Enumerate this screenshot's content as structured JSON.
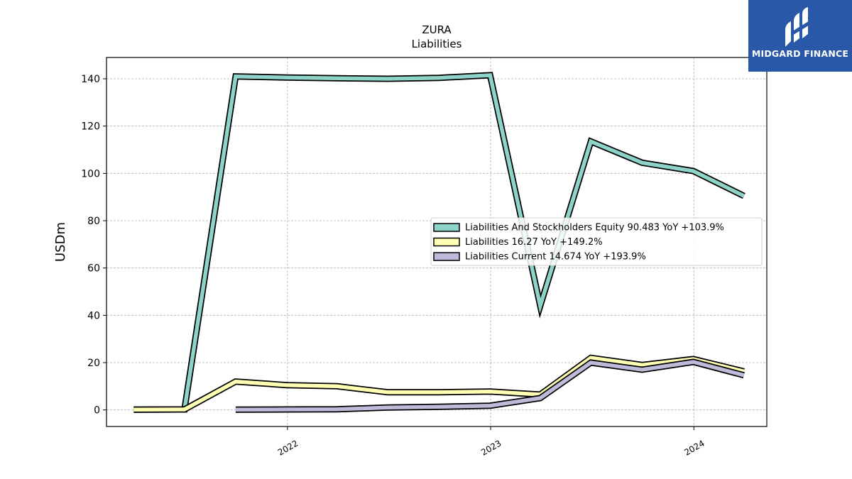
{
  "chart_data": {
    "type": "line",
    "title": "ZURA",
    "subtitle": "Liabilities",
    "xlabel": "",
    "ylabel": "USDm",
    "xlim": [
      "2021-02-10",
      "2024-05-11"
    ],
    "ylim": [
      -7,
      149
    ],
    "x_ticks": [
      "2022",
      "2023",
      "2024"
    ],
    "y_ticks": [
      0,
      20,
      40,
      60,
      80,
      100,
      120,
      140
    ],
    "grid": true,
    "legend_position": "center-right",
    "series": [
      {
        "name": "Liabilities And Stockholders Equity  90.483 YoY +103.9%",
        "color": "#8dd3c7",
        "points": [
          [
            "2021-03-31",
            0.1
          ],
          [
            "2021-06-30",
            0.2
          ],
          [
            "2021-09-30",
            141.0
          ],
          [
            "2021-12-31",
            140.5
          ],
          [
            "2022-03-31",
            140.2
          ],
          [
            "2022-06-30",
            140.0
          ],
          [
            "2022-09-30",
            140.4
          ],
          [
            "2022-12-31",
            141.5
          ],
          [
            "2023-03-31",
            44.0
          ],
          [
            "2023-06-30",
            113.5
          ],
          [
            "2023-09-30",
            104.5
          ],
          [
            "2023-12-31",
            101.0
          ],
          [
            "2024-03-31",
            90.483
          ]
        ]
      },
      {
        "name": "Liabilities  16.27 YoY +149.2%",
        "color": "#ffffb3",
        "points": [
          [
            "2021-03-31",
            0.1
          ],
          [
            "2021-06-30",
            0.2
          ],
          [
            "2021-09-30",
            12.0
          ],
          [
            "2021-12-31",
            10.5
          ],
          [
            "2022-03-31",
            10.0
          ],
          [
            "2022-06-30",
            7.5
          ],
          [
            "2022-09-30",
            7.5
          ],
          [
            "2022-12-31",
            7.8
          ],
          [
            "2023-03-31",
            6.5
          ],
          [
            "2023-06-30",
            22.0
          ],
          [
            "2023-09-30",
            19.0
          ],
          [
            "2023-12-31",
            21.5
          ],
          [
            "2024-03-31",
            16.27
          ]
        ]
      },
      {
        "name": "Liabilities Current  14.674 YoY +193.9%",
        "color": "#bebada",
        "points": [
          [
            "2021-09-30",
            0.1
          ],
          [
            "2021-12-31",
            0.2
          ],
          [
            "2022-03-31",
            0.3
          ],
          [
            "2022-06-30",
            1.0
          ],
          [
            "2022-09-30",
            1.3
          ],
          [
            "2022-12-31",
            1.8
          ],
          [
            "2023-03-31",
            5.0
          ],
          [
            "2023-06-30",
            20.0
          ],
          [
            "2023-09-30",
            17.0
          ],
          [
            "2023-12-31",
            20.3
          ],
          [
            "2024-03-31",
            14.674
          ]
        ]
      }
    ]
  },
  "logo": {
    "text": "MIDGARD FINANCE"
  }
}
